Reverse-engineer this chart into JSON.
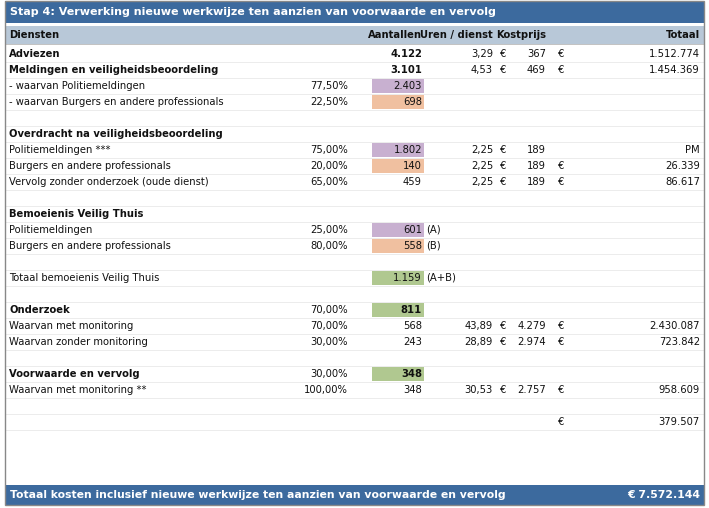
{
  "title": "Stap 4: Verwerking nieuwe werkwijze ten aanzien van voorwaarde en vervolg",
  "footer": "Totaal kosten inclusief nieuwe werkwijze ten aanzien van voorwaarde en vervolg",
  "footer_value": "€ 7.572.144",
  "header_bg": "#3C6A9E",
  "footer_bg": "#3C6A9E",
  "col_header_bg": "#B8C8D8",
  "rows": [
    {
      "label": "Adviezen",
      "bold": true,
      "pct": "",
      "aantallen": "4.122",
      "aantallen_bg": null,
      "uren": "3,29",
      "euro1": "€",
      "kostprijs": "367",
      "euro2": "€",
      "totaal": "1.512.774",
      "suffix": ""
    },
    {
      "label": "Meldingen en veiligheidsbeoordeling",
      "bold": true,
      "pct": "",
      "aantallen": "3.101",
      "aantallen_bg": null,
      "uren": "4,53",
      "euro1": "€",
      "kostprijs": "469",
      "euro2": "€",
      "totaal": "1.454.369",
      "suffix": ""
    },
    {
      "label": "- waarvan Politiemeldingen",
      "bold": false,
      "pct": "77,50%",
      "aantallen": "2.403",
      "aantallen_bg": "#C8B0D0",
      "uren": "",
      "euro1": "",
      "kostprijs": "",
      "euro2": "",
      "totaal": "",
      "suffix": ""
    },
    {
      "label": "- waarvan Burgers en andere professionals",
      "bold": false,
      "pct": "22,50%",
      "aantallen": "698",
      "aantallen_bg": "#F0C0A0",
      "uren": "",
      "euro1": "",
      "kostprijs": "",
      "euro2": "",
      "totaal": "",
      "suffix": ""
    },
    {
      "label": "",
      "bold": false,
      "pct": "",
      "aantallen": "",
      "aantallen_bg": null,
      "uren": "",
      "euro1": "",
      "kostprijs": "",
      "euro2": "",
      "totaal": "",
      "suffix": ""
    },
    {
      "label": "Overdracht na veiligheidsbeoordeling",
      "bold": true,
      "pct": "",
      "aantallen": "",
      "aantallen_bg": null,
      "uren": "",
      "euro1": "",
      "kostprijs": "",
      "euro2": "",
      "totaal": "",
      "suffix": ""
    },
    {
      "label": "Politiemeldingen ***",
      "bold": false,
      "pct": "75,00%",
      "aantallen": "1.802",
      "aantallen_bg": "#C8B0D0",
      "uren": "2,25",
      "euro1": "€",
      "kostprijs": "189",
      "euro2": "",
      "totaal": "PM",
      "suffix": ""
    },
    {
      "label": "Burgers en andere professionals",
      "bold": false,
      "pct": "20,00%",
      "aantallen": "140",
      "aantallen_bg": "#F0C0A0",
      "uren": "2,25",
      "euro1": "€",
      "kostprijs": "189",
      "euro2": "€",
      "totaal": "26.339",
      "suffix": ""
    },
    {
      "label": "Vervolg zonder onderzoek (oude dienst)",
      "bold": false,
      "pct": "65,00%",
      "aantallen": "459",
      "aantallen_bg": null,
      "uren": "2,25",
      "euro1": "€",
      "kostprijs": "189",
      "euro2": "€",
      "totaal": "86.617",
      "suffix": ""
    },
    {
      "label": "",
      "bold": false,
      "pct": "",
      "aantallen": "",
      "aantallen_bg": null,
      "uren": "",
      "euro1": "",
      "kostprijs": "",
      "euro2": "",
      "totaal": "",
      "suffix": ""
    },
    {
      "label": "Bemoeienis Veilig Thuis",
      "bold": true,
      "pct": "",
      "aantallen": "",
      "aantallen_bg": null,
      "uren": "",
      "euro1": "",
      "kostprijs": "",
      "euro2": "",
      "totaal": "",
      "suffix": ""
    },
    {
      "label": "Politiemeldingen",
      "bold": false,
      "pct": "25,00%",
      "aantallen": "601",
      "aantallen_bg": "#C8B0D0",
      "uren": "",
      "euro1": "",
      "kostprijs": "",
      "euro2": "",
      "totaal": "",
      "suffix": "(A)"
    },
    {
      "label": "Burgers en andere professionals",
      "bold": false,
      "pct": "80,00%",
      "aantallen": "558",
      "aantallen_bg": "#F0C0A0",
      "uren": "",
      "euro1": "",
      "kostprijs": "",
      "euro2": "",
      "totaal": "",
      "suffix": "(B)"
    },
    {
      "label": "",
      "bold": false,
      "pct": "",
      "aantallen": "",
      "aantallen_bg": null,
      "uren": "",
      "euro1": "",
      "kostprijs": "",
      "euro2": "",
      "totaal": "",
      "suffix": ""
    },
    {
      "label": "Totaal bemoeienis Veilig Thuis",
      "bold": false,
      "pct": "",
      "aantallen": "1.159",
      "aantallen_bg": "#B0C890",
      "uren": "",
      "euro1": "",
      "kostprijs": "",
      "euro2": "",
      "totaal": "",
      "suffix": "(A+B)"
    },
    {
      "label": "",
      "bold": false,
      "pct": "",
      "aantallen": "",
      "aantallen_bg": null,
      "uren": "",
      "euro1": "",
      "kostprijs": "",
      "euro2": "",
      "totaal": "",
      "suffix": ""
    },
    {
      "label": "Onderzoek",
      "bold": true,
      "pct": "70,00%",
      "aantallen": "811",
      "aantallen_bg": "#B0C890",
      "uren": "",
      "euro1": "",
      "kostprijs": "",
      "euro2": "",
      "totaal": "",
      "suffix": ""
    },
    {
      "label": "Waarvan met monitoring",
      "bold": false,
      "pct": "70,00%",
      "aantallen": "568",
      "aantallen_bg": null,
      "uren": "43,89",
      "euro1": "€",
      "kostprijs": "4.279",
      "euro2": "€",
      "totaal": "2.430.087",
      "suffix": ""
    },
    {
      "label": "Waarvan zonder monitoring",
      "bold": false,
      "pct": "30,00%",
      "aantallen": "243",
      "aantallen_bg": null,
      "uren": "28,89",
      "euro1": "€",
      "kostprijs": "2.974",
      "euro2": "€",
      "totaal": "723.842",
      "suffix": ""
    },
    {
      "label": "",
      "bold": false,
      "pct": "",
      "aantallen": "",
      "aantallen_bg": null,
      "uren": "",
      "euro1": "",
      "kostprijs": "",
      "euro2": "",
      "totaal": "",
      "suffix": ""
    },
    {
      "label": "Voorwaarde en vervolg",
      "bold": true,
      "pct": "30,00%",
      "aantallen": "348",
      "aantallen_bg": "#B0C890",
      "uren": "",
      "euro1": "",
      "kostprijs": "",
      "euro2": "",
      "totaal": "",
      "suffix": ""
    },
    {
      "label": "Waarvan met monitoring **",
      "bold": false,
      "pct": "100,00%",
      "aantallen": "348",
      "aantallen_bg": null,
      "uren": "30,53",
      "euro1": "€",
      "kostprijs": "2.757",
      "euro2": "€",
      "totaal": "958.609",
      "suffix": ""
    },
    {
      "label": "",
      "bold": false,
      "pct": "",
      "aantallen": "",
      "aantallen_bg": null,
      "uren": "",
      "euro1": "",
      "kostprijs": "",
      "euro2": "",
      "totaal": "",
      "suffix": ""
    },
    {
      "label": "",
      "bold": false,
      "pct": "",
      "aantallen": "",
      "aantallen_bg": null,
      "uren": "",
      "euro1": "",
      "kostprijs": "",
      "euro2": "euro_only",
      "totaal": "379.507",
      "suffix": ""
    }
  ]
}
